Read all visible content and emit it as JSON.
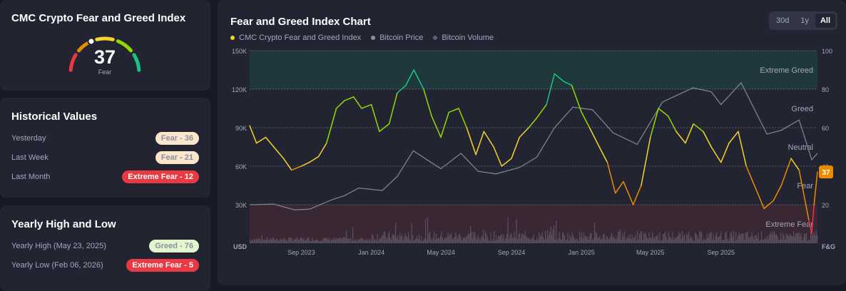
{
  "gauge": {
    "title": "CMC Crypto Fear and Greed Index",
    "value": "37",
    "label": "Fear",
    "colors": [
      "#ea3943",
      "#ea8c00",
      "#f3d42f",
      "#93d900",
      "#16c784"
    ]
  },
  "historical": {
    "title": "Historical Values",
    "rows": [
      {
        "label": "Yesterday",
        "badge": "Fear - 36",
        "bg": "#fbe6cc",
        "fg": "#8a8fa3"
      },
      {
        "label": "Last Week",
        "badge": "Fear - 21",
        "bg": "#fbe6cc",
        "fg": "#8a8fa3"
      },
      {
        "label": "Last Month",
        "badge": "Extreme Fear - 12",
        "bg": "#ea3943",
        "fg": "#ffffff"
      }
    ]
  },
  "yearly": {
    "title": "Yearly High and Low",
    "rows": [
      {
        "label": "Yearly High (May 23, 2025)",
        "badge": "Greed - 76",
        "bg": "#e3f7cf",
        "fg": "#8a8fa3"
      },
      {
        "label": "Yearly Low (Feb 06, 2026)",
        "badge": "Extreme Fear - 5",
        "bg": "#ea3943",
        "fg": "#ffffff"
      }
    ]
  },
  "chart_panel": {
    "title": "Fear and Greed Index Chart",
    "tabs": [
      "30d",
      "1y",
      "All"
    ],
    "active_tab": "All",
    "legend": [
      {
        "label": "CMC Crypto Fear and Greed Index",
        "color": "#f3d42f"
      },
      {
        "label": "Bitcoin Price",
        "color": "#8a8fa3"
      },
      {
        "label": "Bitcoin Volume",
        "color": "#5e6273"
      }
    ]
  },
  "chart_data": {
    "type": "line",
    "left_axis": {
      "label": "USD",
      "ticks": [
        "30K",
        "60K",
        "90K",
        "120K",
        "150K"
      ],
      "range": [
        0,
        150000
      ]
    },
    "right_axis": {
      "label": "F&G",
      "ticks": [
        "20",
        "40",
        "60",
        "80",
        "100"
      ],
      "range": [
        0,
        100
      ]
    },
    "x_ticks": [
      "Sep 2023",
      "Jan 2024",
      "May 2024",
      "Sep 2024",
      "Jan 2025",
      "May 2025",
      "Sep 2025"
    ],
    "x_range": [
      "2023-06-03",
      "2026-02-16"
    ],
    "zones": [
      {
        "label": "Extreme Greed",
        "from": 80,
        "to": 100,
        "color": "#16c784"
      },
      {
        "label": "Greed",
        "from": 60,
        "to": 80
      },
      {
        "label": "Neutral",
        "from": 40,
        "to": 60
      },
      {
        "label": "Fear",
        "from": 20,
        "to": 40
      },
      {
        "label": "Extreme Fear",
        "from": 0,
        "to": 20,
        "color": "#ea3943"
      }
    ],
    "current_label": "37",
    "grid": true,
    "fear_greed": [
      [
        "2023-06-03",
        61
      ],
      [
        "2023-06-15",
        52
      ],
      [
        "2023-07-01",
        55
      ],
      [
        "2023-07-15",
        50
      ],
      [
        "2023-08-01",
        44
      ],
      [
        "2023-08-15",
        38
      ],
      [
        "2023-09-01",
        40
      ],
      [
        "2023-09-15",
        42
      ],
      [
        "2023-10-01",
        45
      ],
      [
        "2023-10-15",
        52
      ],
      [
        "2023-11-01",
        70
      ],
      [
        "2023-11-15",
        74
      ],
      [
        "2023-12-01",
        76
      ],
      [
        "2023-12-15",
        70
      ],
      [
        "2024-01-01",
        72
      ],
      [
        "2024-01-15",
        58
      ],
      [
        "2024-02-01",
        62
      ],
      [
        "2024-02-15",
        78
      ],
      [
        "2024-03-01",
        82
      ],
      [
        "2024-03-15",
        90
      ],
      [
        "2024-04-01",
        80
      ],
      [
        "2024-04-15",
        66
      ],
      [
        "2024-05-01",
        55
      ],
      [
        "2024-05-15",
        68
      ],
      [
        "2024-06-01",
        70
      ],
      [
        "2024-06-15",
        60
      ],
      [
        "2024-07-01",
        46
      ],
      [
        "2024-07-15",
        58
      ],
      [
        "2024-08-01",
        50
      ],
      [
        "2024-08-15",
        40
      ],
      [
        "2024-09-01",
        44
      ],
      [
        "2024-09-15",
        55
      ],
      [
        "2024-10-01",
        60
      ],
      [
        "2024-10-15",
        65
      ],
      [
        "2024-11-01",
        72
      ],
      [
        "2024-11-15",
        88
      ],
      [
        "2024-12-01",
        84
      ],
      [
        "2024-12-15",
        82
      ],
      [
        "2025-01-01",
        68
      ],
      [
        "2025-01-15",
        60
      ],
      [
        "2025-02-01",
        50
      ],
      [
        "2025-02-15",
        42
      ],
      [
        "2025-03-01",
        26
      ],
      [
        "2025-03-15",
        32
      ],
      [
        "2025-04-01",
        20
      ],
      [
        "2025-04-15",
        30
      ],
      [
        "2025-05-01",
        55
      ],
      [
        "2025-05-15",
        70
      ],
      [
        "2025-06-01",
        66
      ],
      [
        "2025-06-15",
        58
      ],
      [
        "2025-07-01",
        52
      ],
      [
        "2025-07-15",
        62
      ],
      [
        "2025-08-01",
        58
      ],
      [
        "2025-08-15",
        50
      ],
      [
        "2025-09-01",
        42
      ],
      [
        "2025-09-15",
        52
      ],
      [
        "2025-10-01",
        58
      ],
      [
        "2025-10-15",
        40
      ],
      [
        "2025-11-01",
        28
      ],
      [
        "2025-11-15",
        18
      ],
      [
        "2025-12-01",
        22
      ],
      [
        "2025-12-15",
        30
      ],
      [
        "2026-01-01",
        44
      ],
      [
        "2026-01-15",
        38
      ],
      [
        "2026-02-01",
        12
      ],
      [
        "2026-02-06",
        5
      ],
      [
        "2026-02-10",
        20
      ],
      [
        "2026-02-16",
        37
      ]
    ],
    "btc_price": [
      [
        "2023-06-03",
        30000
      ],
      [
        "2023-07-15",
        30500
      ],
      [
        "2023-08-20",
        26000
      ],
      [
        "2023-09-15",
        26500
      ],
      [
        "2023-10-25",
        34000
      ],
      [
        "2023-11-15",
        37000
      ],
      [
        "2023-12-10",
        43000
      ],
      [
        "2024-01-20",
        41000
      ],
      [
        "2024-02-15",
        52000
      ],
      [
        "2024-03-14",
        72000
      ],
      [
        "2024-05-01",
        58000
      ],
      [
        "2024-06-05",
        70000
      ],
      [
        "2024-07-05",
        56000
      ],
      [
        "2024-08-05",
        54000
      ],
      [
        "2024-09-15",
        59000
      ],
      [
        "2024-10-15",
        67000
      ],
      [
        "2024-11-15",
        90000
      ],
      [
        "2024-12-17",
        106000
      ],
      [
        "2025-01-20",
        104000
      ],
      [
        "2025-02-25",
        86000
      ],
      [
        "2025-04-08",
        77000
      ],
      [
        "2025-05-22",
        110000
      ],
      [
        "2025-07-14",
        121000
      ],
      [
        "2025-08-15",
        118000
      ],
      [
        "2025-09-01",
        108000
      ],
      [
        "2025-10-06",
        125000
      ],
      [
        "2025-11-20",
        85000
      ],
      [
        "2025-12-15",
        88000
      ],
      [
        "2026-01-15",
        96000
      ],
      [
        "2026-02-06",
        65000
      ],
      [
        "2026-02-16",
        70000
      ]
    ]
  }
}
